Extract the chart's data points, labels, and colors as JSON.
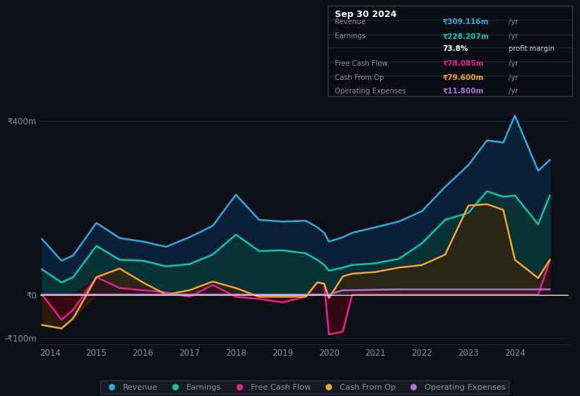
{
  "bg_color": "#0d1117",
  "grid_color": "#252830",
  "text_color": "#8a9099",
  "years": [
    2013.83,
    2014.25,
    2014.5,
    2015.0,
    2015.5,
    2016.0,
    2016.5,
    2017.0,
    2017.5,
    2018.0,
    2018.5,
    2019.0,
    2019.5,
    2019.75,
    2019.9,
    2020.0,
    2020.3,
    2020.5,
    2021.0,
    2021.5,
    2022.0,
    2022.5,
    2023.0,
    2023.4,
    2023.75,
    2024.0,
    2024.5,
    2024.75
  ],
  "revenue": [
    128,
    78,
    90,
    165,
    130,
    122,
    110,
    132,
    158,
    230,
    172,
    168,
    170,
    155,
    142,
    122,
    132,
    142,
    155,
    168,
    192,
    248,
    298,
    355,
    350,
    412,
    285,
    310
  ],
  "earnings": [
    58,
    28,
    40,
    112,
    80,
    78,
    65,
    70,
    92,
    138,
    100,
    102,
    95,
    80,
    68,
    55,
    62,
    68,
    72,
    82,
    118,
    172,
    188,
    238,
    225,
    228,
    162,
    228
  ],
  "free_cash_flow": [
    0,
    -58,
    -35,
    40,
    15,
    10,
    5,
    -5,
    22,
    -5,
    -10,
    -18,
    -5,
    28,
    25,
    -92,
    -85,
    0,
    0,
    0,
    0,
    0,
    0,
    0,
    0,
    0,
    0,
    78
  ],
  "cash_from_op": [
    -70,
    -78,
    -55,
    40,
    60,
    28,
    0,
    10,
    30,
    15,
    -5,
    -5,
    -5,
    28,
    25,
    -8,
    42,
    48,
    52,
    62,
    68,
    92,
    205,
    208,
    195,
    80,
    38,
    80
  ],
  "operating_expenses": [
    0,
    0,
    0,
    0,
    0,
    0,
    0,
    0,
    0,
    0,
    0,
    0,
    0,
    0,
    0,
    0,
    10,
    10,
    11,
    12,
    12,
    12,
    12,
    12,
    12,
    12,
    12,
    12
  ],
  "xlim": [
    2013.8,
    2025.15
  ],
  "ylim": [
    -115,
    432
  ],
  "xticks": [
    2014,
    2015,
    2016,
    2017,
    2018,
    2019,
    2020,
    2021,
    2022,
    2023,
    2024
  ],
  "yticks": [
    -100,
    0,
    400
  ],
  "ytick_labels": [
    "-₹100m",
    "₹0",
    "₹400m"
  ],
  "revenue_color": "#29abe2",
  "earnings_color": "#00c9b1",
  "fcf_color": "#e91e8c",
  "cashop_color": "#f5a623",
  "opex_color": "#b06fd8",
  "revenue_fill": "#082540",
  "earnings_fill": "#063535",
  "cashop_fill": "#3d2005",
  "fcf_fill_neg": "#3d0510",
  "fcf_fill_pos": "#2a0520",
  "info_date": "Sep 30 2024",
  "info_rows": [
    {
      "label": "Revenue",
      "value": "₹309.116m",
      "suffix": " /yr",
      "color": "#29abe2"
    },
    {
      "label": "Earnings",
      "value": "₹228.207m",
      "suffix": " /yr",
      "color": "#00c9b1"
    },
    {
      "label": "",
      "value": "73.8%",
      "suffix": " profit margin",
      "color": "#ffffff"
    },
    {
      "label": "Free Cash Flow",
      "value": "₹78.085m",
      "suffix": " /yr",
      "color": "#e91e8c"
    },
    {
      "label": "Cash From Op",
      "value": "₹79.600m",
      "suffix": " /yr",
      "color": "#f5a623"
    },
    {
      "label": "Operating Expenses",
      "value": "₹11.800m",
      "suffix": " /yr",
      "color": "#b06fd8"
    }
  ],
  "legend_labels": [
    "Revenue",
    "Earnings",
    "Free Cash Flow",
    "Cash From Op",
    "Operating Expenses"
  ]
}
